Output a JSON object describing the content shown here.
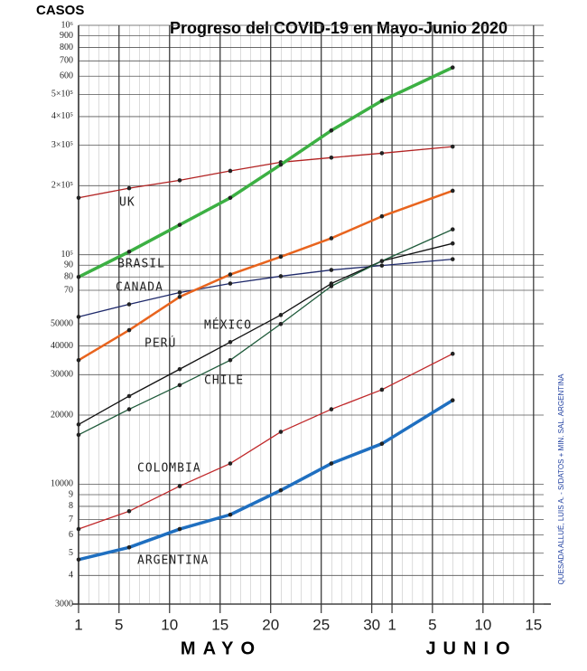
{
  "chart_data": {
    "type": "line",
    "title": "Progreso del COVID-19 en Mayo-Junio 2020",
    "y_label": "CASOS",
    "x_groups": [
      "MAYO",
      "JUNIO"
    ],
    "annotation": "QUESADA ALLUÉ, LUIS A. - S/DATOS + MIN. SAL. ARGENTINA",
    "log_y": true,
    "grid": true,
    "x": [
      0,
      5,
      10,
      15,
      20,
      25,
      30,
      37
    ],
    "xlim": [
      0,
      46
    ],
    "xticks": [
      {
        "value": 0,
        "label": "1"
      },
      {
        "value": 4,
        "label": "5"
      },
      {
        "value": 9,
        "label": "10"
      },
      {
        "value": 14,
        "label": "15"
      },
      {
        "value": 19,
        "label": "20"
      },
      {
        "value": 24,
        "label": "25"
      },
      {
        "value": 29,
        "label": "30"
      },
      {
        "value": 31,
        "label": "1"
      },
      {
        "value": 35,
        "label": "5"
      },
      {
        "value": 40,
        "label": "10"
      },
      {
        "value": 45,
        "label": "15"
      }
    ],
    "ylim": [
      3000,
      1000000
    ],
    "yticks": [
      3000,
      {
        "value": 4000,
        "label": "4"
      },
      {
        "value": 5000,
        "label": "5"
      },
      {
        "value": 6000,
        "label": "6"
      },
      {
        "value": 7000,
        "label": "7"
      },
      {
        "value": 8000,
        "label": "8"
      },
      {
        "value": 9000,
        "label": "9"
      },
      10000,
      20000,
      30000,
      40000,
      50000,
      {
        "value": 70000,
        "label": "70"
      },
      {
        "value": 80000,
        "label": "80"
      },
      {
        "value": 90000,
        "label": "90"
      },
      {
        "value": 100000,
        "label": "10⁵"
      },
      {
        "value": 200000,
        "label": "2×10⁵"
      },
      {
        "value": 300000,
        "label": "3×10⁵"
      },
      {
        "value": 400000,
        "label": "4×10⁵"
      },
      {
        "value": 500000,
        "label": "5×10⁵"
      },
      {
        "value": 600000,
        "label": "600"
      },
      {
        "value": 700000,
        "label": "700"
      },
      {
        "value": 800000,
        "label": "800"
      },
      {
        "value": 900000,
        "label": "900"
      },
      {
        "value": 1000000,
        "label": "10⁶"
      }
    ],
    "series": [
      {
        "name": "UK",
        "color": "#b22222",
        "values": [
          177000,
          195000,
          211000,
          232000,
          253000,
          265000,
          277000,
          296000
        ]
      },
      {
        "name": "BRASIL",
        "color": "#3cb043",
        "values": [
          80000,
          103000,
          135000,
          177000,
          247000,
          348000,
          469000,
          655000
        ]
      },
      {
        "name": "CANADA",
        "color": "#1f2a6b",
        "values": [
          53600,
          60800,
          68400,
          74900,
          80600,
          85800,
          89700,
          95600
        ]
      },
      {
        "name": "PERÚ",
        "color": "#e8641e",
        "values": [
          34700,
          46900,
          65500,
          82000,
          98000,
          118000,
          147000,
          190000
        ]
      },
      {
        "name": "MÉXICO",
        "color": "#111111",
        "values": [
          18200,
          24200,
          31700,
          41600,
          54600,
          74900,
          93900,
          112000
        ]
      },
      {
        "name": "CHILE",
        "color": "#1e5a3a",
        "values": [
          16400,
          21200,
          27000,
          34700,
          49900,
          72900,
          93900,
          129000
        ]
      },
      {
        "name": "COLOMBIA",
        "color": "#c0282a",
        "values": [
          6370,
          7620,
          9800,
          12300,
          16900,
          21200,
          25800,
          37000
        ]
      },
      {
        "name": "ARGENTINA",
        "color": "#1f6fc0",
        "values": [
          4690,
          5300,
          6370,
          7360,
          9400,
          12300,
          15000,
          23200
        ]
      }
    ]
  }
}
